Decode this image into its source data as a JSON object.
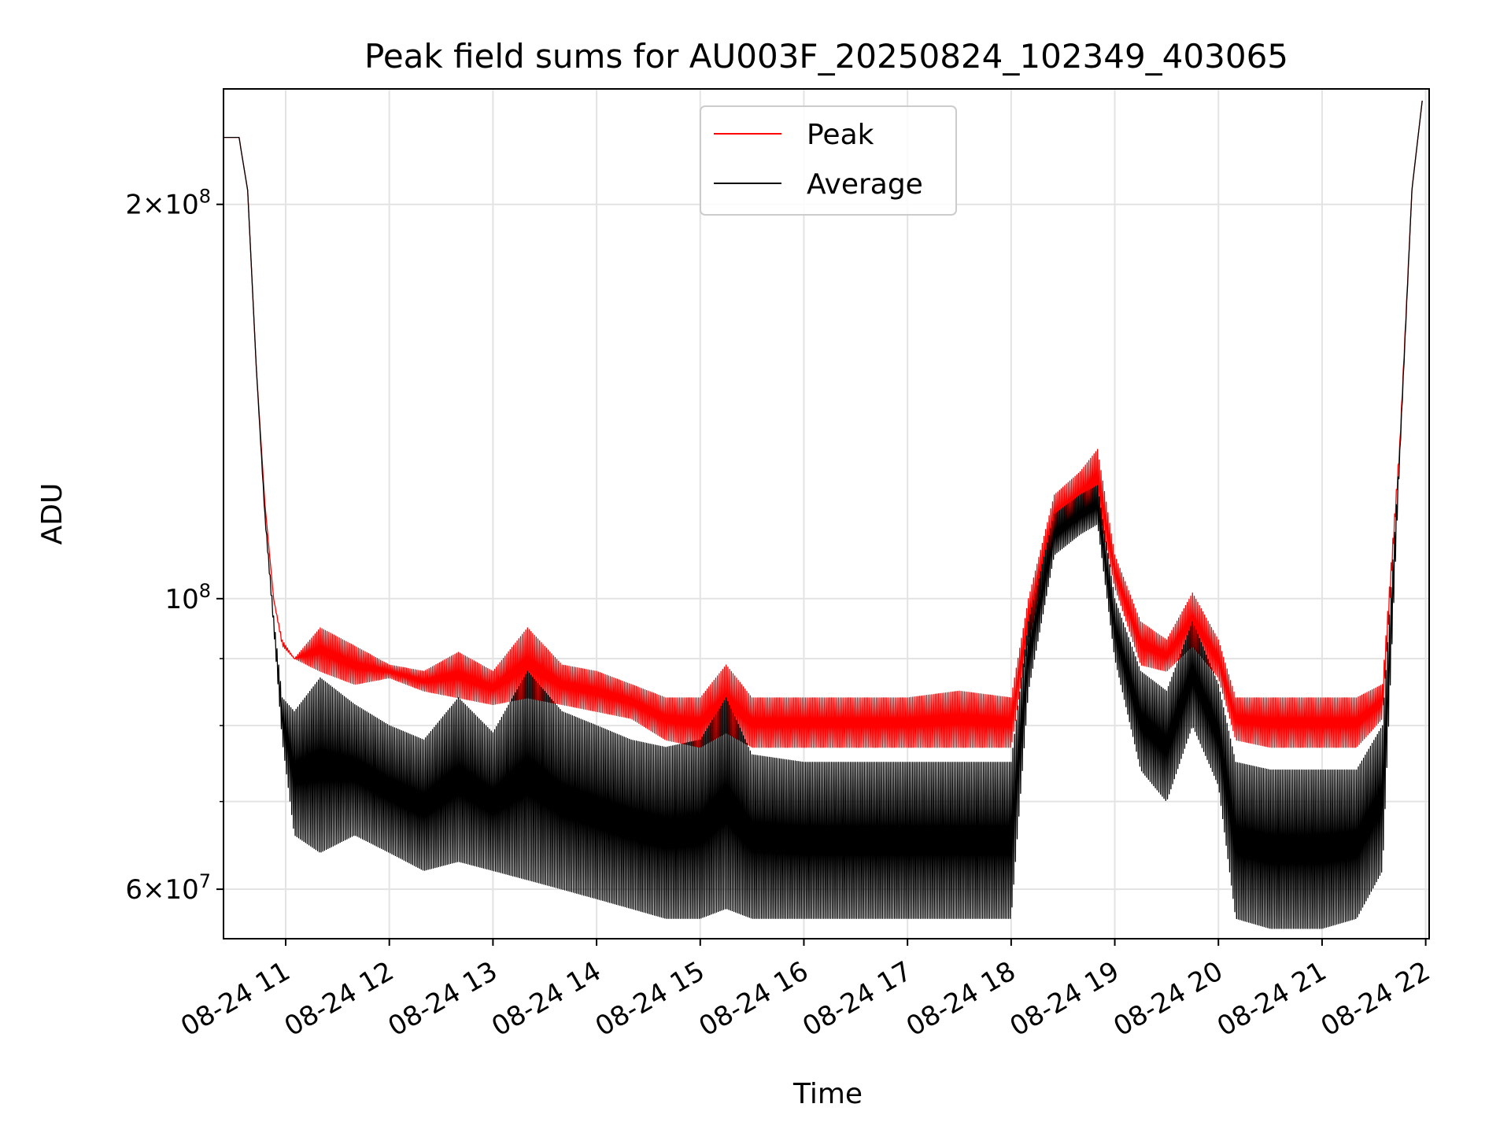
{
  "chart_data": {
    "type": "line",
    "title": "Peak field sums for AU003F_20250824_102349_403065",
    "xlabel": "Time",
    "ylabel": "ADU",
    "yscale": "log",
    "grid": true,
    "legend_position": "upper center",
    "xlim": [
      "2025-08-24T10:24",
      "2025-08-24T22:02"
    ],
    "ylim": [
      55000000,
      245000000
    ],
    "x_ticks": [
      {
        "value": "2025-08-24T11:00",
        "label": "08-24 11"
      },
      {
        "value": "2025-08-24T12:00",
        "label": "08-24 12"
      },
      {
        "value": "2025-08-24T13:00",
        "label": "08-24 13"
      },
      {
        "value": "2025-08-24T14:00",
        "label": "08-24 14"
      },
      {
        "value": "2025-08-24T15:00",
        "label": "08-24 15"
      },
      {
        "value": "2025-08-24T16:00",
        "label": "08-24 16"
      },
      {
        "value": "2025-08-24T17:00",
        "label": "08-24 17"
      },
      {
        "value": "2025-08-24T18:00",
        "label": "08-24 18"
      },
      {
        "value": "2025-08-24T19:00",
        "label": "08-24 19"
      },
      {
        "value": "2025-08-24T20:00",
        "label": "08-24 20"
      },
      {
        "value": "2025-08-24T21:00",
        "label": "08-24 21"
      },
      {
        "value": "2025-08-24T22:00",
        "label": "08-24 22"
      }
    ],
    "y_major_ticks": [
      {
        "value": 60000000,
        "mantissa": "6×10",
        "exp": "7"
      },
      {
        "value": 100000000,
        "mantissa": "10",
        "exp": "8"
      },
      {
        "value": 200000000,
        "mantissa": "2×10",
        "exp": "8"
      }
    ],
    "y_minor_ticks": [
      70000000,
      80000000,
      90000000
    ],
    "series": [
      {
        "name": "Peak",
        "color": "#ff0000",
        "oscillating": true,
        "x": [
          "10:24",
          "10:33",
          "10:38",
          "10:43",
          "10:48",
          "10:53",
          "10:58",
          "11:05",
          "11:20",
          "11:40",
          "12:00",
          "12:20",
          "12:40",
          "13:00",
          "13:20",
          "13:40",
          "14:00",
          "14:20",
          "14:40",
          "15:00",
          "15:15",
          "15:30",
          "16:00",
          "16:30",
          "17:00",
          "17:30",
          "18:00",
          "18:10",
          "18:25",
          "18:40",
          "18:50",
          "19:00",
          "19:15",
          "19:30",
          "19:45",
          "20:00",
          "20:10",
          "20:30",
          "21:00",
          "21:20",
          "21:35",
          "21:45",
          "21:52",
          "21:58"
        ],
        "low": [
          225000000,
          225000000,
          205000000,
          150000000,
          118000000,
          100000000,
          92000000,
          90000000,
          88000000,
          86000000,
          87000000,
          85000000,
          84000000,
          83000000,
          84000000,
          83000000,
          82000000,
          81000000,
          78000000,
          77000000,
          79000000,
          77000000,
          77000000,
          77000000,
          77000000,
          77000000,
          77000000,
          93000000,
          112000000,
          115000000,
          118000000,
          102000000,
          89000000,
          88000000,
          92000000,
          87000000,
          78000000,
          77000000,
          77000000,
          77000000,
          81000000,
          130000000,
          205000000,
          240000000
        ],
        "high": [
          225000000,
          225000000,
          205000000,
          150000000,
          118000000,
          100000000,
          93000000,
          90000000,
          95000000,
          92000000,
          89000000,
          88000000,
          91000000,
          88000000,
          95000000,
          89000000,
          88000000,
          86000000,
          84000000,
          84000000,
          89000000,
          84000000,
          84000000,
          84000000,
          84000000,
          85000000,
          84000000,
          100000000,
          120000000,
          125000000,
          130000000,
          108000000,
          96000000,
          93000000,
          101000000,
          93000000,
          84000000,
          84000000,
          84000000,
          84000000,
          86000000,
          132000000,
          205000000,
          240000000
        ]
      },
      {
        "name": "Average",
        "color": "#000000",
        "oscillating": true,
        "x": [
          "10:24",
          "10:33",
          "10:38",
          "10:43",
          "10:48",
          "10:53",
          "10:58",
          "11:05",
          "11:20",
          "11:40",
          "12:00",
          "12:20",
          "12:40",
          "13:00",
          "13:20",
          "13:40",
          "14:00",
          "14:20",
          "14:40",
          "15:00",
          "15:15",
          "15:30",
          "16:00",
          "16:30",
          "17:00",
          "17:30",
          "18:00",
          "18:10",
          "18:25",
          "18:40",
          "18:50",
          "19:00",
          "19:15",
          "19:30",
          "19:45",
          "20:00",
          "20:10",
          "20:30",
          "21:00",
          "21:20",
          "21:35",
          "21:45",
          "21:52",
          "21:58"
        ],
        "low": [
          225000000,
          225000000,
          205000000,
          150000000,
          115000000,
          95000000,
          78000000,
          66000000,
          64000000,
          66000000,
          64000000,
          62000000,
          63000000,
          62000000,
          61000000,
          60000000,
          59000000,
          58000000,
          57000000,
          57000000,
          58000000,
          57000000,
          57000000,
          57000000,
          57000000,
          57000000,
          57000000,
          85000000,
          108000000,
          112000000,
          114000000,
          90000000,
          74000000,
          70000000,
          80000000,
          72000000,
          57000000,
          56000000,
          56000000,
          57000000,
          62000000,
          128000000,
          205000000,
          240000000
        ],
        "high": [
          225000000,
          225000000,
          205000000,
          150000000,
          116000000,
          97000000,
          84000000,
          82000000,
          87000000,
          83000000,
          80000000,
          78000000,
          84000000,
          79000000,
          88000000,
          82000000,
          80000000,
          78000000,
          77000000,
          78000000,
          84000000,
          76000000,
          75000000,
          75000000,
          75000000,
          75000000,
          75000000,
          96000000,
          116000000,
          120000000,
          122000000,
          100000000,
          88000000,
          85000000,
          96000000,
          86000000,
          75000000,
          74000000,
          74000000,
          74000000,
          80000000,
          130000000,
          205000000,
          240000000
        ]
      }
    ]
  }
}
